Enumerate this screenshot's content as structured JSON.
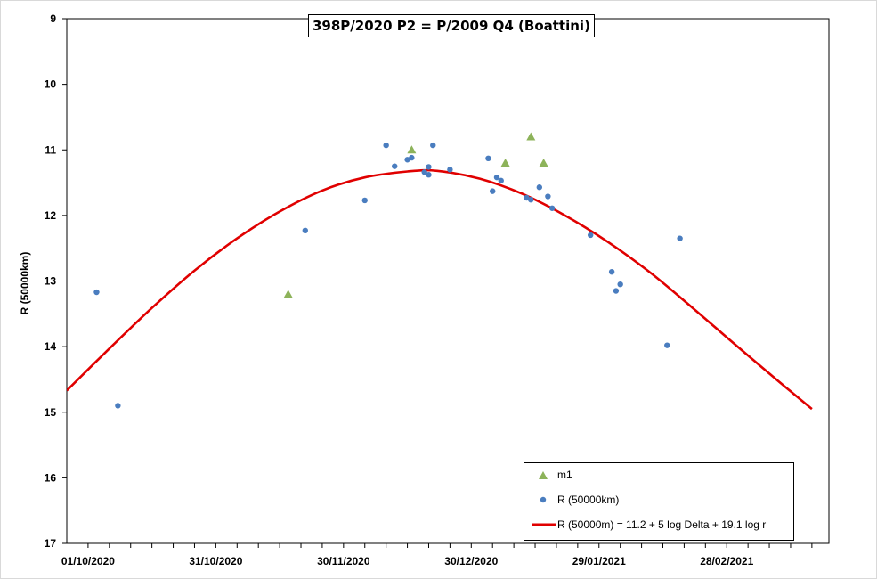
{
  "chart_data": {
    "type": "scatter",
    "title": "398P/2020 P2 = P/2009 Q4 (Boattini)",
    "ylabel": "R (50000km)",
    "xlabel": "",
    "x_axis": {
      "type": "date",
      "range": [
        "2020-09-26",
        "2021-03-24"
      ],
      "tick_labels": [
        "01/10/2020",
        "31/10/2020",
        "30/11/2020",
        "30/12/2020",
        "29/01/2021",
        "28/02/2021"
      ],
      "tick_values": [
        "2020-10-01",
        "2020-10-31",
        "2020-11-30",
        "2020-12-30",
        "2021-01-29",
        "2021-02-28"
      ]
    },
    "y_axis": {
      "range": [
        9,
        17
      ],
      "reversed": true,
      "tick_values": [
        9,
        10,
        11,
        12,
        13,
        14,
        15,
        16,
        17
      ]
    },
    "grid": false,
    "legend_position": "bottom-right",
    "series": [
      {
        "name": "m1",
        "kind": "triangle",
        "color": "#8db35a",
        "points": [
          {
            "x": "2020-11-17",
            "y": 13.2
          },
          {
            "x": "2020-12-16",
            "y": 11.0
          },
          {
            "x": "2021-01-07",
            "y": 11.2
          },
          {
            "x": "2021-01-13",
            "y": 10.8
          },
          {
            "x": "2021-01-16",
            "y": 11.2
          }
        ]
      },
      {
        "name": "R (50000km)",
        "kind": "dot",
        "color": "#4a7dbf",
        "points": [
          {
            "x": "2020-10-03",
            "y": 13.17
          },
          {
            "x": "2020-10-08",
            "y": 14.9
          },
          {
            "x": "2020-11-21",
            "y": 12.23
          },
          {
            "x": "2020-12-05",
            "y": 11.77
          },
          {
            "x": "2020-12-10",
            "y": 10.93
          },
          {
            "x": "2020-12-12",
            "y": 11.25
          },
          {
            "x": "2020-12-15",
            "y": 11.15
          },
          {
            "x": "2020-12-16",
            "y": 11.12
          },
          {
            "x": "2020-12-19",
            "y": 11.34
          },
          {
            "x": "2020-12-20",
            "y": 11.26
          },
          {
            "x": "2020-12-20",
            "y": 11.38
          },
          {
            "x": "2020-12-21",
            "y": 10.93
          },
          {
            "x": "2020-12-25",
            "y": 11.3
          },
          {
            "x": "2021-01-03",
            "y": 11.13
          },
          {
            "x": "2021-01-04",
            "y": 11.63
          },
          {
            "x": "2021-01-05",
            "y": 11.42
          },
          {
            "x": "2021-01-06",
            "y": 11.47
          },
          {
            "x": "2021-01-12",
            "y": 11.73
          },
          {
            "x": "2021-01-13",
            "y": 11.76
          },
          {
            "x": "2021-01-15",
            "y": 11.57
          },
          {
            "x": "2021-01-17",
            "y": 11.71
          },
          {
            "x": "2021-01-18",
            "y": 11.89
          },
          {
            "x": "2021-01-27",
            "y": 12.3
          },
          {
            "x": "2021-02-01",
            "y": 12.86
          },
          {
            "x": "2021-02-02",
            "y": 13.15
          },
          {
            "x": "2021-02-03",
            "y": 13.05
          },
          {
            "x": "2021-02-14",
            "y": 13.98
          },
          {
            "x": "2021-02-17",
            "y": 12.35
          }
        ]
      },
      {
        "name": "R (50000m) = 11.2 + 5 log Delta + 19.1 log r",
        "kind": "line",
        "color": "#e00000",
        "points": [
          {
            "x": "2020-09-26",
            "y": 14.67
          },
          {
            "x": "2020-10-06",
            "y": 14.03
          },
          {
            "x": "2020-10-16",
            "y": 13.41
          },
          {
            "x": "2020-10-26",
            "y": 12.84
          },
          {
            "x": "2020-11-05",
            "y": 12.35
          },
          {
            "x": "2020-11-15",
            "y": 11.94
          },
          {
            "x": "2020-11-25",
            "y": 11.62
          },
          {
            "x": "2020-12-05",
            "y": 11.42
          },
          {
            "x": "2020-12-15",
            "y": 11.33
          },
          {
            "x": "2020-12-22",
            "y": 11.32
          },
          {
            "x": "2021-01-01",
            "y": 11.44
          },
          {
            "x": "2021-01-11",
            "y": 11.67
          },
          {
            "x": "2021-01-21",
            "y": 12.0
          },
          {
            "x": "2021-01-31",
            "y": 12.4
          },
          {
            "x": "2021-02-10",
            "y": 12.87
          },
          {
            "x": "2021-02-20",
            "y": 13.41
          },
          {
            "x": "2021-03-02",
            "y": 13.97
          },
          {
            "x": "2021-03-12",
            "y": 14.52
          },
          {
            "x": "2021-03-20",
            "y": 14.95
          }
        ]
      }
    ]
  }
}
